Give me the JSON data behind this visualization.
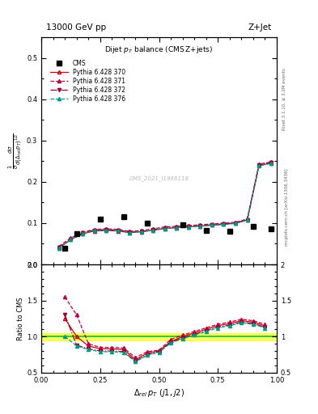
{
  "title_top": "13000 GeV pp",
  "title_right": "Z+Jet",
  "watermark": "CMS_2021_I1966118",
  "right_label_top": "Rivet 3.1.10, ≥ 3.2M events",
  "right_label_bottom": "mcplots.cern.ch [arXiv:1306.3436]",
  "cms_x": [
    0.1,
    0.15,
    0.25,
    0.35,
    0.45,
    0.6,
    0.7,
    0.8,
    0.9,
    0.975
  ],
  "cms_y": [
    0.04,
    0.075,
    0.11,
    0.115,
    0.1,
    0.095,
    0.083,
    0.081,
    0.092,
    0.086
  ],
  "py370_x": [
    0.075,
    0.125,
    0.175,
    0.225,
    0.275,
    0.325,
    0.375,
    0.425,
    0.475,
    0.525,
    0.575,
    0.625,
    0.675,
    0.725,
    0.775,
    0.825,
    0.875,
    0.925,
    0.975
  ],
  "py370_y": [
    0.04,
    0.06,
    0.074,
    0.081,
    0.082,
    0.081,
    0.077,
    0.079,
    0.083,
    0.087,
    0.089,
    0.091,
    0.093,
    0.095,
    0.097,
    0.1,
    0.108,
    0.24,
    0.245
  ],
  "py371_x": [
    0.075,
    0.125,
    0.175,
    0.225,
    0.275,
    0.325,
    0.375,
    0.425,
    0.475,
    0.525,
    0.575,
    0.625,
    0.675,
    0.725,
    0.775,
    0.825,
    0.875,
    0.925,
    0.975
  ],
  "py371_y": [
    0.044,
    0.064,
    0.078,
    0.085,
    0.086,
    0.085,
    0.08,
    0.082,
    0.086,
    0.091,
    0.092,
    0.094,
    0.096,
    0.098,
    0.1,
    0.102,
    0.11,
    0.243,
    0.248
  ],
  "py372_x": [
    0.075,
    0.125,
    0.175,
    0.225,
    0.275,
    0.325,
    0.375,
    0.425,
    0.475,
    0.525,
    0.575,
    0.625,
    0.675,
    0.725,
    0.775,
    0.825,
    0.875,
    0.925,
    0.975
  ],
  "py372_y": [
    0.041,
    0.061,
    0.076,
    0.083,
    0.084,
    0.083,
    0.078,
    0.08,
    0.084,
    0.088,
    0.09,
    0.092,
    0.094,
    0.096,
    0.098,
    0.1,
    0.108,
    0.241,
    0.246
  ],
  "py376_x": [
    0.075,
    0.125,
    0.175,
    0.225,
    0.275,
    0.325,
    0.375,
    0.425,
    0.475,
    0.525,
    0.575,
    0.625,
    0.675,
    0.725,
    0.775,
    0.825,
    0.875,
    0.925,
    0.975
  ],
  "py376_y": [
    0.04,
    0.06,
    0.075,
    0.082,
    0.083,
    0.082,
    0.077,
    0.079,
    0.083,
    0.087,
    0.089,
    0.091,
    0.093,
    0.095,
    0.097,
    0.099,
    0.107,
    0.239,
    0.244
  ],
  "ratio370_x": [
    0.1,
    0.15,
    0.2,
    0.25,
    0.3,
    0.35,
    0.4,
    0.45,
    0.5,
    0.55,
    0.6,
    0.65,
    0.7,
    0.75,
    0.8,
    0.85,
    0.9,
    0.95
  ],
  "ratio370_y": [
    1.25,
    1.0,
    0.87,
    0.83,
    0.83,
    0.82,
    0.68,
    0.77,
    0.8,
    0.93,
    1.0,
    1.05,
    1.1,
    1.15,
    1.18,
    1.22,
    1.2,
    1.15
  ],
  "ratio371_x": [
    0.1,
    0.15,
    0.2,
    0.25,
    0.3,
    0.35,
    0.4,
    0.45,
    0.5,
    0.55,
    0.6,
    0.65,
    0.7,
    0.75,
    0.8,
    0.85,
    0.9,
    0.95
  ],
  "ratio371_y": [
    1.55,
    1.3,
    0.9,
    0.85,
    0.85,
    0.84,
    0.71,
    0.79,
    0.81,
    0.96,
    1.02,
    1.07,
    1.12,
    1.17,
    1.2,
    1.24,
    1.22,
    1.17
  ],
  "ratio372_x": [
    0.1,
    0.15,
    0.2,
    0.25,
    0.3,
    0.35,
    0.4,
    0.45,
    0.5,
    0.55,
    0.6,
    0.65,
    0.7,
    0.75,
    0.8,
    0.85,
    0.9,
    0.95
  ],
  "ratio372_y": [
    1.3,
    0.88,
    0.83,
    0.8,
    0.8,
    0.79,
    0.66,
    0.75,
    0.79,
    0.92,
    0.98,
    1.03,
    1.08,
    1.13,
    1.16,
    1.2,
    1.18,
    1.13
  ],
  "ratio376_x": [
    0.1,
    0.15,
    0.2,
    0.25,
    0.3,
    0.35,
    0.4,
    0.45,
    0.5,
    0.55,
    0.6,
    0.65,
    0.7,
    0.75,
    0.8,
    0.85,
    0.9,
    0.95
  ],
  "ratio376_y": [
    1.0,
    0.87,
    0.82,
    0.79,
    0.79,
    0.78,
    0.65,
    0.74,
    0.78,
    0.91,
    0.97,
    1.02,
    1.07,
    1.12,
    1.15,
    1.19,
    1.17,
    1.12
  ],
  "color370": "#cc0000",
  "color371": "#bb0044",
  "color372": "#990033",
  "color376": "#009988",
  "ylim_main": [
    0.0,
    0.55
  ],
  "ylim_ratio": [
    0.5,
    2.0
  ],
  "xlim": [
    0.0,
    1.0
  ]
}
